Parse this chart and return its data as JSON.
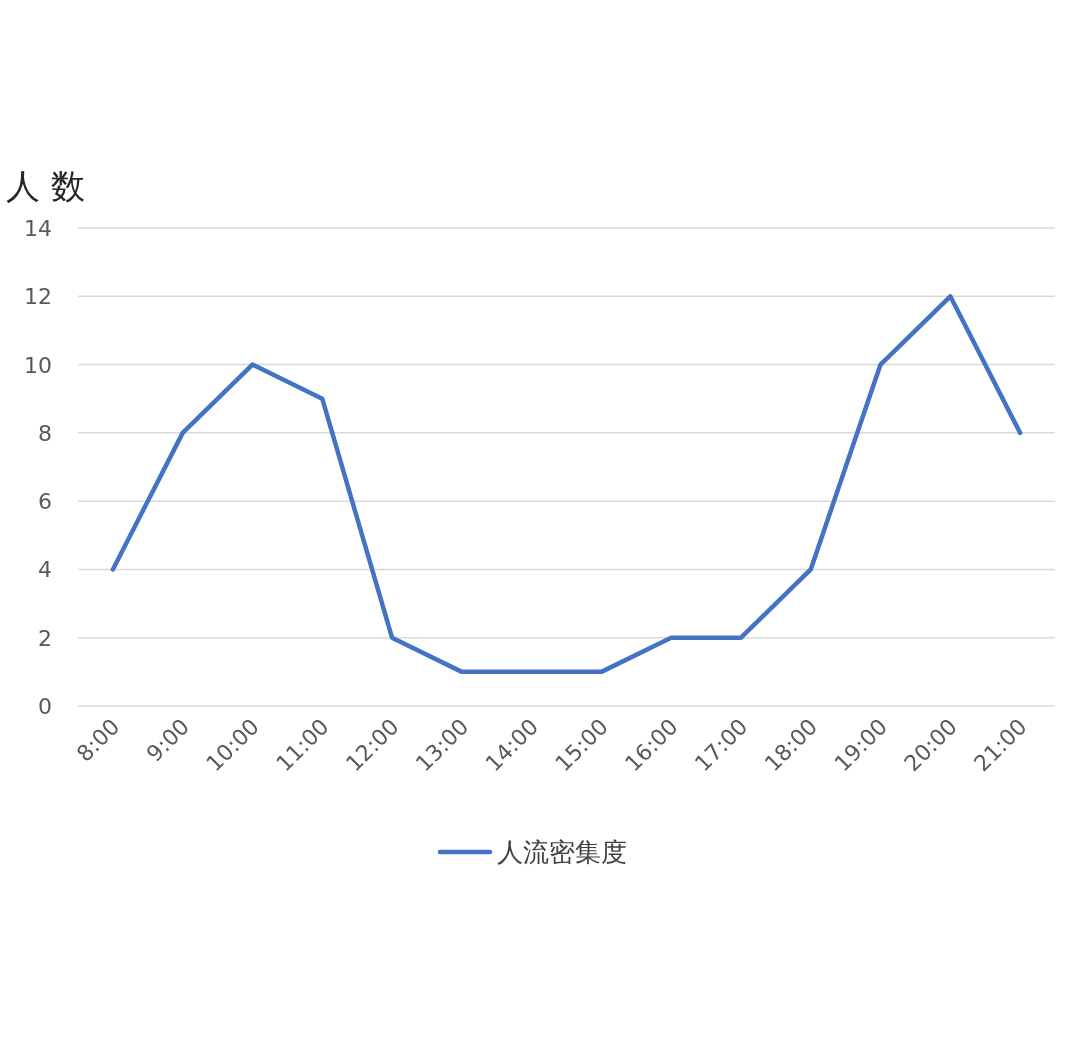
{
  "chart_data": {
    "type": "line",
    "ylabel": "人 数",
    "categories": [
      "8:00",
      "9:00",
      "10:00",
      "11:00",
      "12:00",
      "13:00",
      "14:00",
      "15:00",
      "16:00",
      "17:00",
      "18:00",
      "19:00",
      "20:00",
      "21:00"
    ],
    "series": [
      {
        "name": "人流密集度",
        "color": "#4472c4",
        "values": [
          4,
          8,
          10,
          9,
          2,
          1,
          1,
          1,
          2,
          2,
          4,
          10,
          12,
          8
        ]
      }
    ],
    "ylim": [
      0,
      14
    ],
    "yticks": [
      0,
      2,
      4,
      6,
      8,
      10,
      12,
      14
    ],
    "grid": "y",
    "legend": "bottom"
  }
}
